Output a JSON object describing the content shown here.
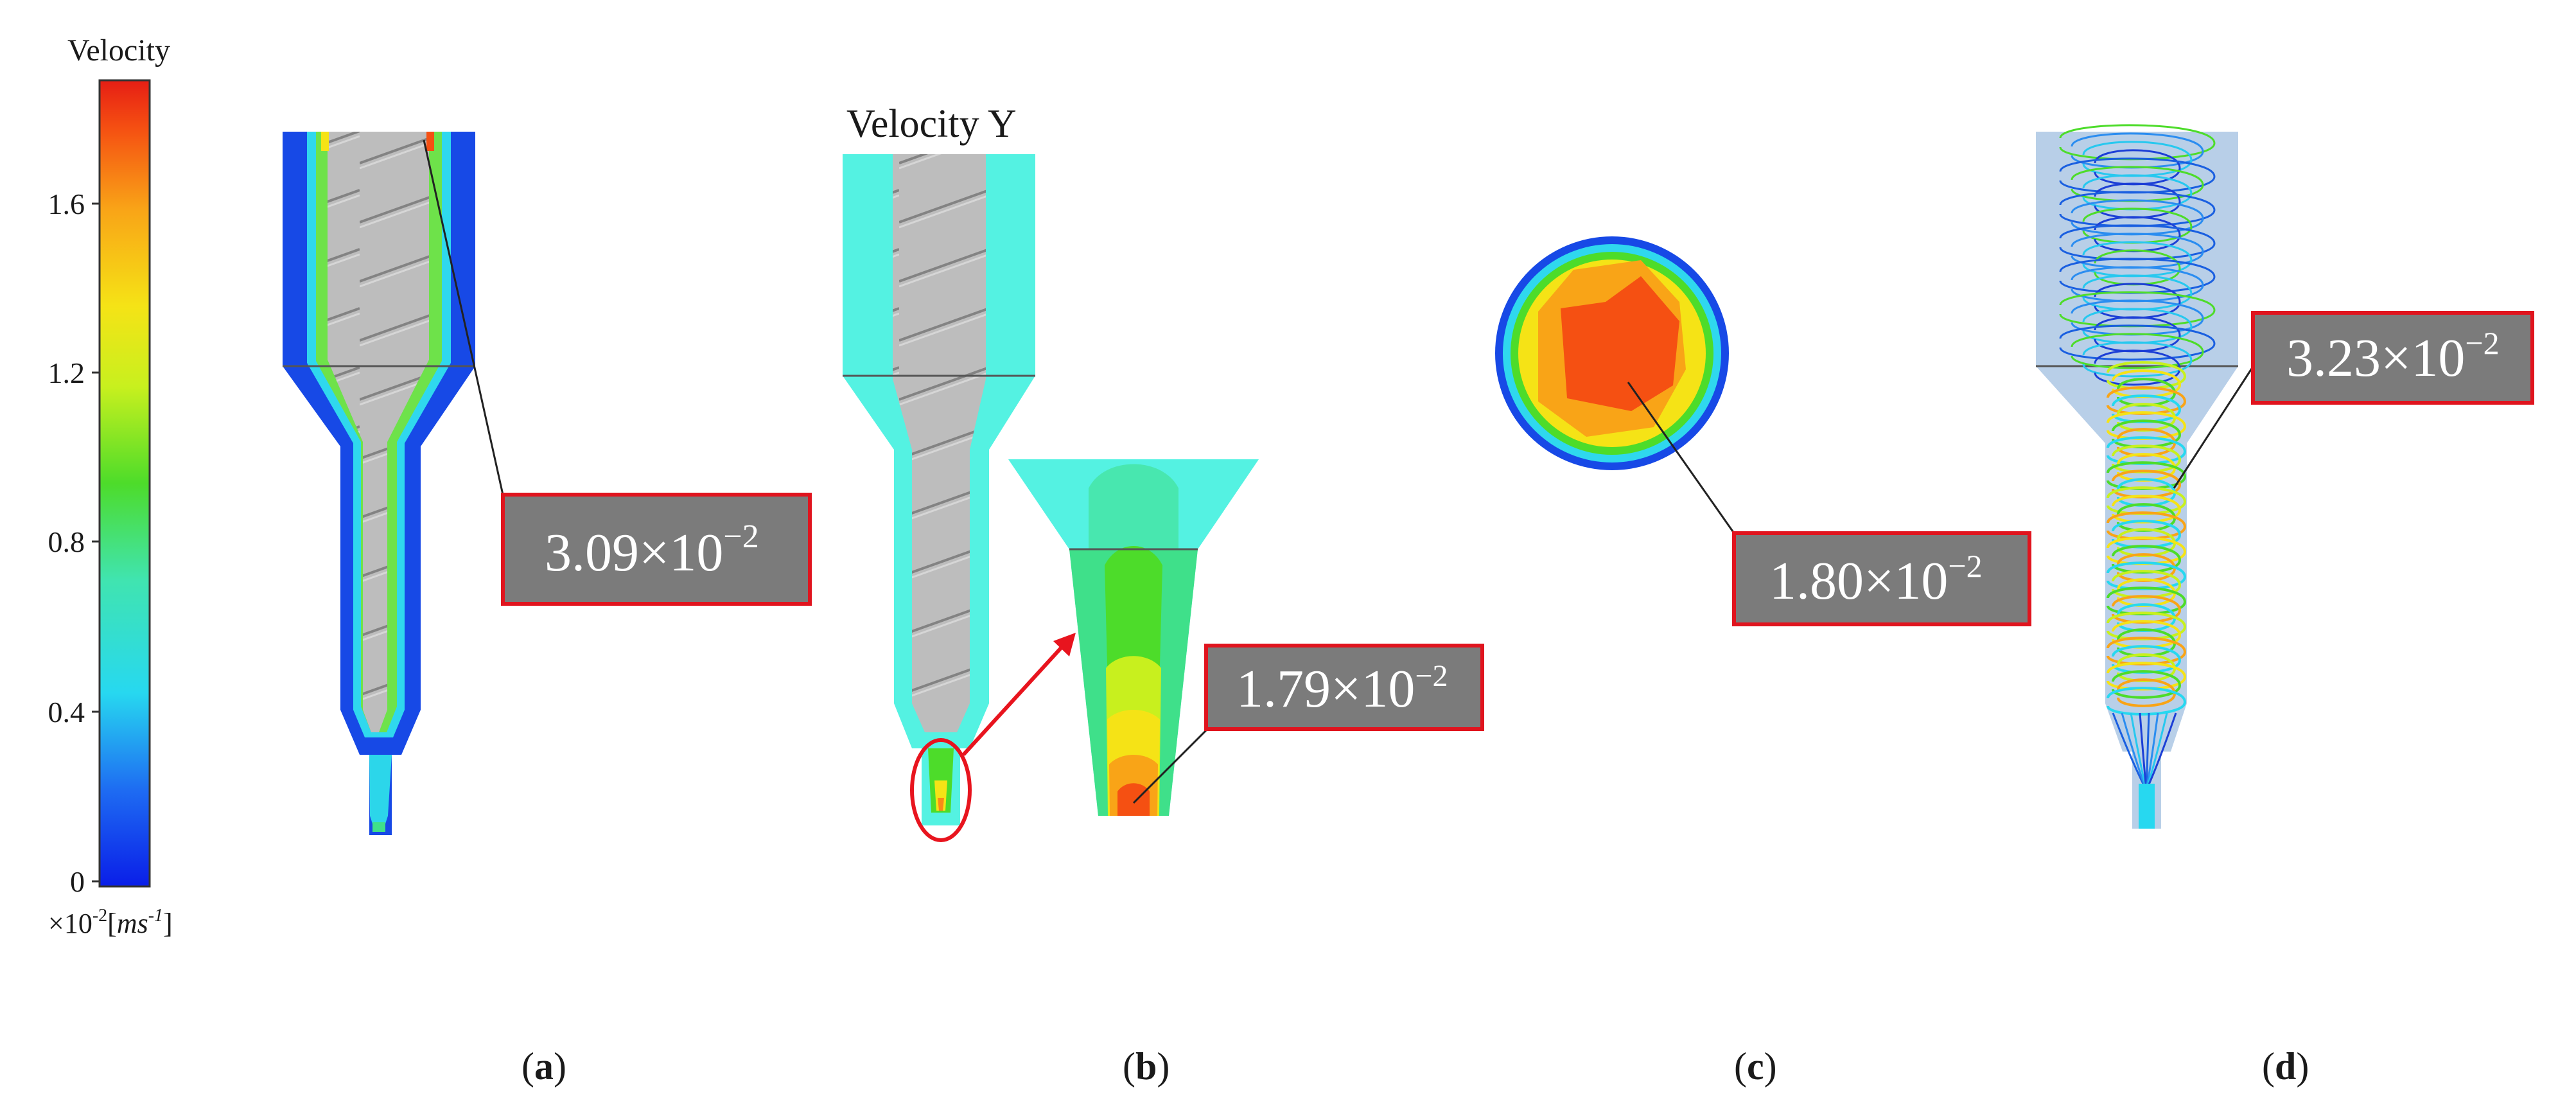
{
  "colorbar": {
    "title": "Velocity",
    "ticks": [
      "0",
      "0.4",
      "0.8",
      "1.2",
      "1.6"
    ],
    "unit_prefix": "×10",
    "unit_exp": "-2",
    "unit_open": "[",
    "unit_ms": "ms",
    "unit_exp2": "-1",
    "unit_close": "]",
    "colors": [
      "#0a1ee8",
      "#1e6cf2",
      "#27d8f0",
      "#3fe08a",
      "#4ddc2a",
      "#c8f01e",
      "#f5e316",
      "#f9a417",
      "#f55012",
      "#e61e14"
    ]
  },
  "panels": {
    "a": {
      "label_letter": "a",
      "callout_mantissa": "3.09×10",
      "callout_exp": "−2"
    },
    "b": {
      "title": "Velocity Y",
      "label_letter": "b",
      "callout_mantissa": "1.79×10",
      "callout_exp": "−2"
    },
    "c": {
      "label_letter": "c",
      "callout_mantissa": "1.80×10",
      "callout_exp": "−2"
    },
    "d": {
      "label_letter": "d",
      "callout_mantissa": "3.23×10",
      "callout_exp": "−2"
    }
  },
  "colors": {
    "callout_fill": "#7b7b7b",
    "callout_border": "#e0141e",
    "deep_blue": "#1749e6",
    "cyan_field": "#54f2e2",
    "screw_gray": "#b9b9b9",
    "highlight_red": "#e8141e"
  }
}
